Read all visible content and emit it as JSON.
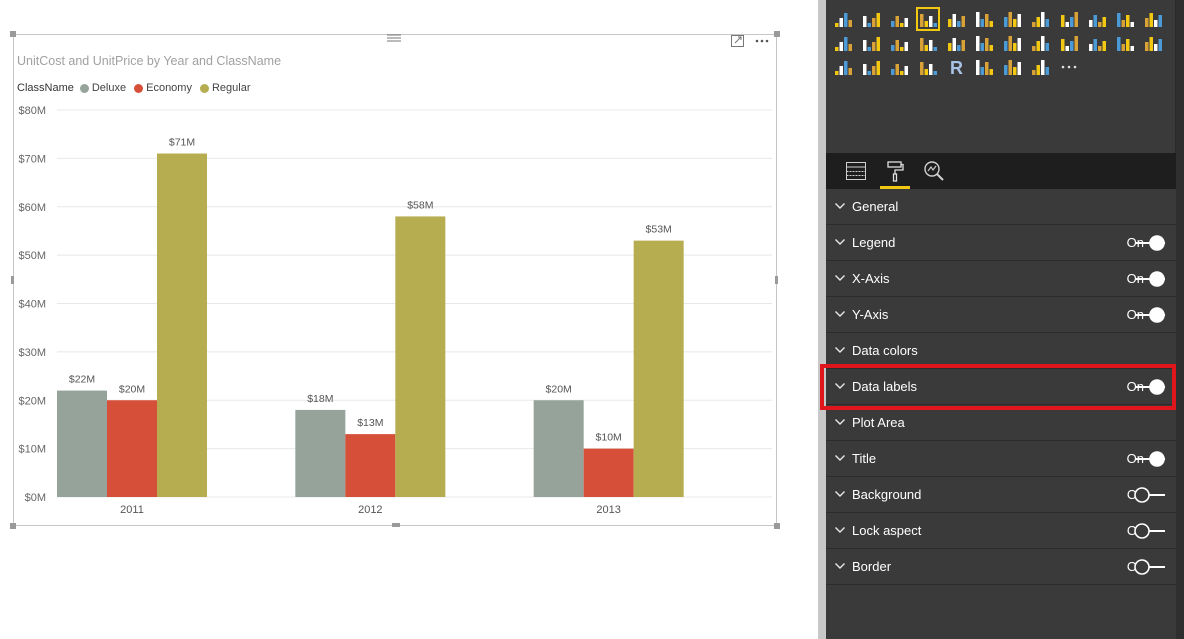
{
  "chart_data": {
    "type": "bar",
    "title": "UnitCost and UnitPrice by Year and ClassName",
    "categories": [
      "2011",
      "2012",
      "2013"
    ],
    "series": [
      {
        "name": "Deluxe",
        "color": "#95a39a",
        "values": [
          22,
          18,
          20
        ],
        "labels": [
          "$22M",
          "$18M",
          "$20M"
        ]
      },
      {
        "name": "Economy",
        "color": "#d64f39",
        "values": [
          20,
          13,
          10
        ],
        "labels": [
          "$20M",
          "$13M",
          "$10M"
        ]
      },
      {
        "name": "Regular",
        "color": "#b5ad4f",
        "values": [
          71,
          58,
          53
        ],
        "labels": [
          "$71M",
          "$58M",
          "$53M"
        ]
      }
    ],
    "legend_title": "ClassName",
    "legend_position": "top-left",
    "ylim": [
      0,
      80
    ],
    "yticks": [
      0,
      10,
      20,
      30,
      40,
      50,
      60,
      70,
      80
    ],
    "ytick_labels": [
      "$0M",
      "$10M",
      "$20M",
      "$30M",
      "$40M",
      "$50M",
      "$60M",
      "$70M",
      "$80M"
    ],
    "grid": true
  },
  "format_pane": {
    "sections": [
      {
        "label": "General",
        "state": ""
      },
      {
        "label": "Legend",
        "state": "On"
      },
      {
        "label": "X-Axis",
        "state": "On"
      },
      {
        "label": "Y-Axis",
        "state": "On"
      },
      {
        "label": "Data colors",
        "state": ""
      },
      {
        "label": "Data labels",
        "state": "On"
      },
      {
        "label": "Plot Area",
        "state": ""
      },
      {
        "label": "Title",
        "state": "On"
      },
      {
        "label": "Background",
        "state": "Off"
      },
      {
        "label": "Lock aspect",
        "state": "Off"
      },
      {
        "label": "Border",
        "state": "Off"
      }
    ],
    "highlighted_section": "Data labels",
    "highlight_color": "#e0161d"
  },
  "tabs": [
    {
      "name": "fields",
      "icon": "fields-grid-icon"
    },
    {
      "name": "format",
      "icon": "paint-roller-icon",
      "active": true
    },
    {
      "name": "analytics",
      "icon": "analytics-magnifier-icon"
    }
  ],
  "colors": {
    "pane_bg": "#3a3a3a",
    "tab_strip_bg": "#1e1e1e",
    "accent": "#f2c811"
  }
}
